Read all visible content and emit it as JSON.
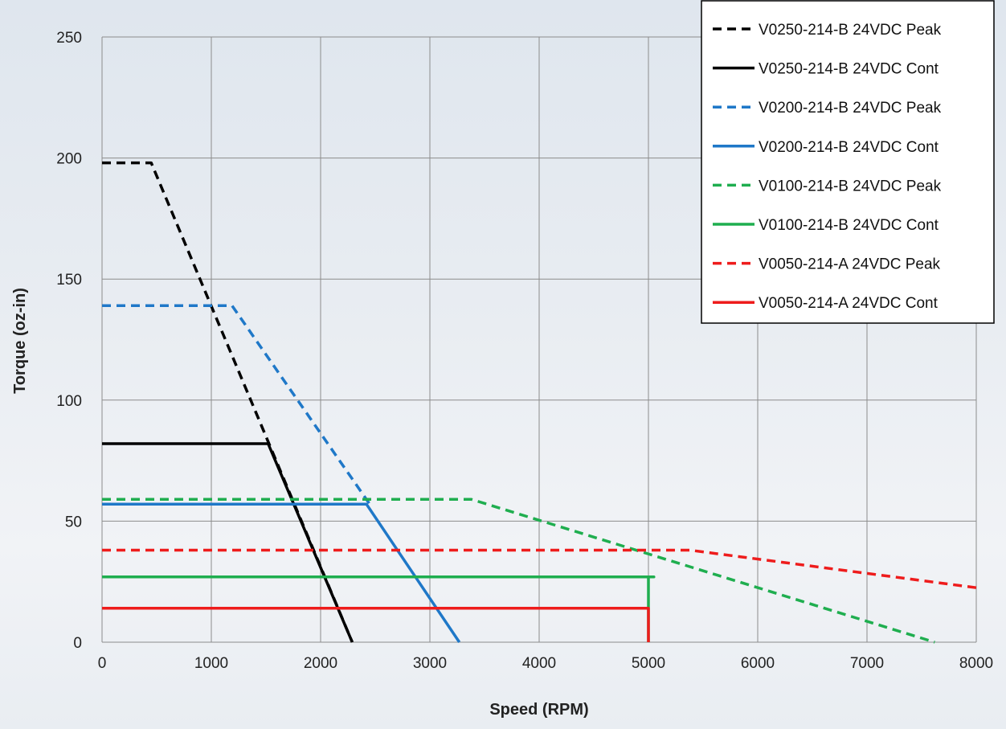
{
  "chart_data": {
    "type": "line",
    "xlabel": "Speed (RPM)",
    "ylabel": "Torque (oz-in)",
    "xlim": [
      0,
      8000
    ],
    "ylim": [
      0,
      250
    ],
    "xticks": [
      0,
      1000,
      2000,
      3000,
      4000,
      5000,
      6000,
      7000,
      8000
    ],
    "yticks": [
      0,
      50,
      100,
      150,
      200,
      250
    ],
    "grid": true,
    "legend_position": "top-right",
    "series": [
      {
        "name": "V0250-214-B 24VDC Peak",
        "color": "#000000",
        "dash": true,
        "points": [
          [
            0,
            198
          ],
          [
            450,
            198
          ],
          [
            2290,
            0
          ]
        ]
      },
      {
        "name": "V0250-214-B 24VDC Cont",
        "color": "#000000",
        "dash": false,
        "points": [
          [
            0,
            82
          ],
          [
            1520,
            82
          ],
          [
            2290,
            0
          ]
        ]
      },
      {
        "name": "V0200-214-B 24VDC Peak",
        "color": "#1f78c8",
        "dash": true,
        "points": [
          [
            0,
            139
          ],
          [
            1190,
            139
          ],
          [
            2450,
            57
          ]
        ]
      },
      {
        "name": "V0200-214-B 24VDC Cont",
        "color": "#1f78c8",
        "dash": false,
        "points": [
          [
            0,
            57
          ],
          [
            2420,
            57
          ],
          [
            3270,
            0
          ]
        ]
      },
      {
        "name": "V0100-214-B 24VDC Peak",
        "color": "#1fae4f",
        "dash": true,
        "points": [
          [
            0,
            59
          ],
          [
            3380,
            59
          ],
          [
            7620,
            0
          ]
        ]
      },
      {
        "name": "V0100-214-B 24VDC Cont",
        "color": "#1fae4f",
        "dash": false,
        "points": [
          [
            0,
            27
          ],
          [
            5050,
            27
          ],
          [
            5000,
            27
          ],
          [
            5000,
            0
          ]
        ]
      },
      {
        "name": "V0050-214-A 24VDC Peak",
        "color": "#ee1c1c",
        "dash": true,
        "points": [
          [
            0,
            38
          ],
          [
            5380,
            38
          ],
          [
            8000,
            22.5
          ]
        ]
      },
      {
        "name": "V0050-214-A 24VDC Cont",
        "color": "#ee1c1c",
        "dash": false,
        "points": [
          [
            0,
            14
          ],
          [
            5000,
            14
          ],
          [
            5000,
            0
          ]
        ]
      }
    ]
  }
}
